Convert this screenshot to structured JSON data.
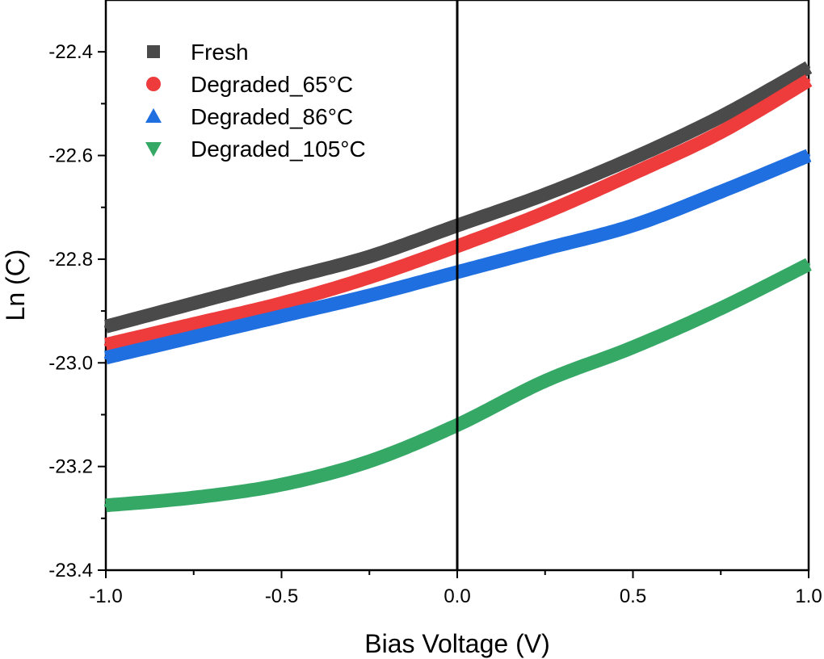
{
  "chart_data": {
    "type": "line",
    "xlabel": "Bias Voltage (V)",
    "ylabel": "Ln (C)",
    "xlim": [
      -1.0,
      1.0
    ],
    "ylim": [
      -23.4,
      -22.3
    ],
    "x_ticks": [
      -1.0,
      -0.5,
      0.0,
      0.5,
      1.0
    ],
    "x_tick_labels": [
      "-1.0",
      "-0.5",
      "0.0",
      "0.5",
      "1.0"
    ],
    "y_ticks": [
      -23.4,
      -23.2,
      -23.0,
      -22.8,
      -22.6,
      -22.4
    ],
    "y_tick_labels": [
      "-23.4",
      "-23.2",
      "-23.0",
      "-22.8",
      "-22.6",
      "-22.4"
    ],
    "reference_line_x": 0.0,
    "legend_position": "top-left",
    "grid": false,
    "x": [
      -1.0,
      -0.75,
      -0.5,
      -0.25,
      0.0,
      0.25,
      0.5,
      0.75,
      1.0
    ],
    "series": [
      {
        "name": "Fresh",
        "marker": "square",
        "color": "#4a4a4a",
        "values": [
          -22.93,
          -22.885,
          -22.84,
          -22.795,
          -22.735,
          -22.675,
          -22.605,
          -22.525,
          -22.43
        ]
      },
      {
        "name": "Degraded_65°C",
        "marker": "circle",
        "color": "#ee3b3b",
        "values": [
          -22.965,
          -22.925,
          -22.885,
          -22.835,
          -22.775,
          -22.71,
          -22.635,
          -22.555,
          -22.455
        ]
      },
      {
        "name": "Degraded_86°C",
        "marker": "triangle-up",
        "color": "#1f6fe0",
        "values": [
          -22.99,
          -22.95,
          -22.91,
          -22.87,
          -22.825,
          -22.78,
          -22.735,
          -22.67,
          -22.6
        ]
      },
      {
        "name": "Degraded_105°C",
        "marker": "triangle-down",
        "color": "#35a866",
        "values": [
          -23.275,
          -23.26,
          -23.235,
          -23.19,
          -23.12,
          -23.035,
          -22.97,
          -22.895,
          -22.81
        ]
      }
    ]
  }
}
